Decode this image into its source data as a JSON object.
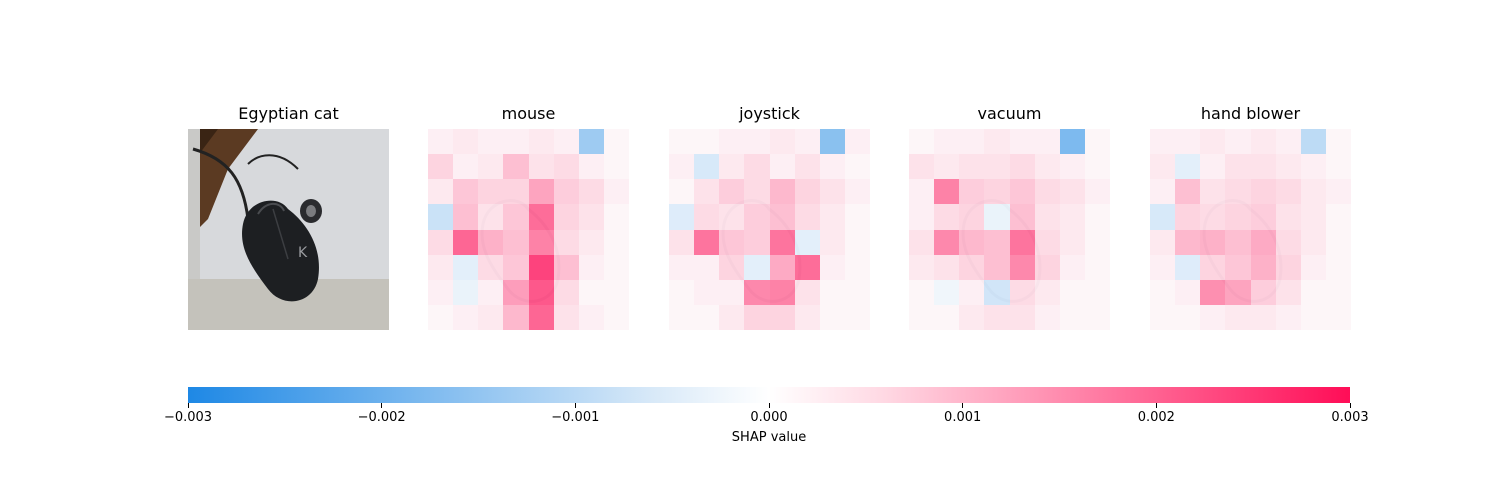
{
  "chart_data": {
    "type": "heatmap",
    "panels": [
      {
        "title": "Egyptian cat",
        "kind": "image"
      },
      {
        "title": "mouse",
        "kind": "shap",
        "values": [
          [
            0.0002,
            0.0003,
            0.0002,
            0.0002,
            0.0003,
            0.0002,
            -0.0015,
            0.0001
          ],
          [
            0.0006,
            0.0002,
            0.0003,
            0.0009,
            0.0004,
            0.0005,
            0.0002,
            0.0001
          ],
          [
            0.0003,
            0.0008,
            0.0006,
            0.0006,
            0.0013,
            0.0007,
            0.0005,
            0.0002
          ],
          [
            -0.0008,
            0.0009,
            0.0004,
            0.0008,
            0.0021,
            0.0006,
            0.0004,
            0.0001
          ],
          [
            0.0005,
            0.0022,
            0.0011,
            0.0009,
            0.0018,
            0.0005,
            0.0003,
            0.0001
          ],
          [
            0.0003,
            -0.0004,
            0.0005,
            0.0008,
            0.0027,
            0.0009,
            0.0002,
            0.0001
          ],
          [
            0.0002,
            -0.0003,
            0.0002,
            0.0014,
            0.0024,
            0.0005,
            0.0001,
            0.0001
          ],
          [
            0.0001,
            0.0002,
            0.0003,
            0.001,
            0.0022,
            0.0004,
            0.0002,
            0.0001
          ]
        ]
      },
      {
        "title": "joystick",
        "kind": "shap",
        "values": [
          [
            0.0001,
            0.0001,
            0.0002,
            0.0002,
            0.0003,
            0.0002,
            -0.0018,
            0.0002
          ],
          [
            0.0002,
            -0.0006,
            0.0003,
            0.0005,
            0.0002,
            0.0004,
            0.0002,
            0.0001
          ],
          [
            0.0001,
            0.0004,
            0.0007,
            0.0005,
            0.001,
            0.0006,
            0.0004,
            0.0002
          ],
          [
            -0.0005,
            0.0005,
            0.0004,
            0.0007,
            0.0009,
            0.0005,
            0.0003,
            0.0001
          ],
          [
            0.0004,
            0.002,
            0.0008,
            0.0007,
            0.002,
            -0.0004,
            0.0003,
            0.0001
          ],
          [
            0.0002,
            0.0002,
            0.0006,
            -0.0004,
            0.0012,
            0.0021,
            0.0002,
            0.0001
          ],
          [
            0.0001,
            0.0002,
            0.0002,
            0.0017,
            0.0018,
            0.0004,
            0.0001,
            0.0001
          ],
          [
            0.0001,
            0.0001,
            0.0003,
            0.0006,
            0.0006,
            0.0003,
            0.0001,
            0.0001
          ]
        ]
      },
      {
        "title": "vacuum",
        "kind": "shap",
        "values": [
          [
            0.0001,
            0.0002,
            0.0002,
            0.0003,
            0.0002,
            0.0002,
            -0.002,
            0.0001
          ],
          [
            0.0004,
            0.0003,
            0.0004,
            0.0004,
            0.0005,
            0.0003,
            0.0002,
            0.0001
          ],
          [
            0.0002,
            0.0018,
            0.0007,
            0.0006,
            0.0008,
            0.0005,
            0.0004,
            0.0002
          ],
          [
            0.0002,
            0.0005,
            0.0006,
            -0.0003,
            0.0009,
            0.0004,
            0.0003,
            0.0001
          ],
          [
            0.0004,
            0.0017,
            0.001,
            0.0009,
            0.002,
            0.0005,
            0.0003,
            0.0001
          ],
          [
            0.0003,
            0.0004,
            0.0006,
            0.0009,
            0.0017,
            0.0006,
            0.0002,
            0.0001
          ],
          [
            0.0001,
            -0.0002,
            0.0002,
            -0.0007,
            0.0005,
            0.0003,
            0.0001,
            0.0001
          ],
          [
            0.0001,
            0.0001,
            0.0003,
            0.0004,
            0.0004,
            0.0002,
            0.0001,
            0.0001
          ]
        ]
      },
      {
        "title": "hand blower",
        "kind": "shap",
        "values": [
          [
            0.0002,
            0.0002,
            0.0003,
            0.0002,
            0.0003,
            0.0002,
            -0.001,
            0.0001
          ],
          [
            0.0003,
            -0.0004,
            0.0002,
            0.0004,
            0.0004,
            0.0003,
            0.0002,
            0.0001
          ],
          [
            0.0002,
            0.0009,
            0.0004,
            0.0005,
            0.0006,
            0.0005,
            0.0003,
            0.0002
          ],
          [
            -0.0006,
            0.0006,
            0.0005,
            0.0006,
            0.0007,
            0.0004,
            0.0003,
            0.0001
          ],
          [
            0.0003,
            0.001,
            0.0011,
            0.0009,
            0.0012,
            0.0005,
            0.0003,
            0.0001
          ],
          [
            0.0002,
            -0.0005,
            0.0006,
            0.0008,
            0.0011,
            0.0006,
            0.0002,
            0.0001
          ],
          [
            0.0001,
            0.0002,
            0.0016,
            0.0013,
            0.0007,
            0.0004,
            0.0001,
            0.0001
          ],
          [
            0.0001,
            0.0001,
            0.0002,
            0.0003,
            0.0003,
            0.0002,
            0.0001,
            0.0001
          ]
        ]
      }
    ],
    "colorbar": {
      "label": "SHAP value",
      "range": [
        -0.003,
        0.003
      ],
      "ticks": [
        "−0.003",
        "−0.002",
        "−0.001",
        "0.000",
        "0.001",
        "0.002",
        "0.003"
      ],
      "tick_values": [
        -0.003,
        -0.002,
        -0.001,
        0.0,
        0.001,
        0.002,
        0.003
      ],
      "colors": {
        "negative": "#1e88e5",
        "zero": "#ffffff",
        "positive": "#ff0d57"
      }
    }
  }
}
